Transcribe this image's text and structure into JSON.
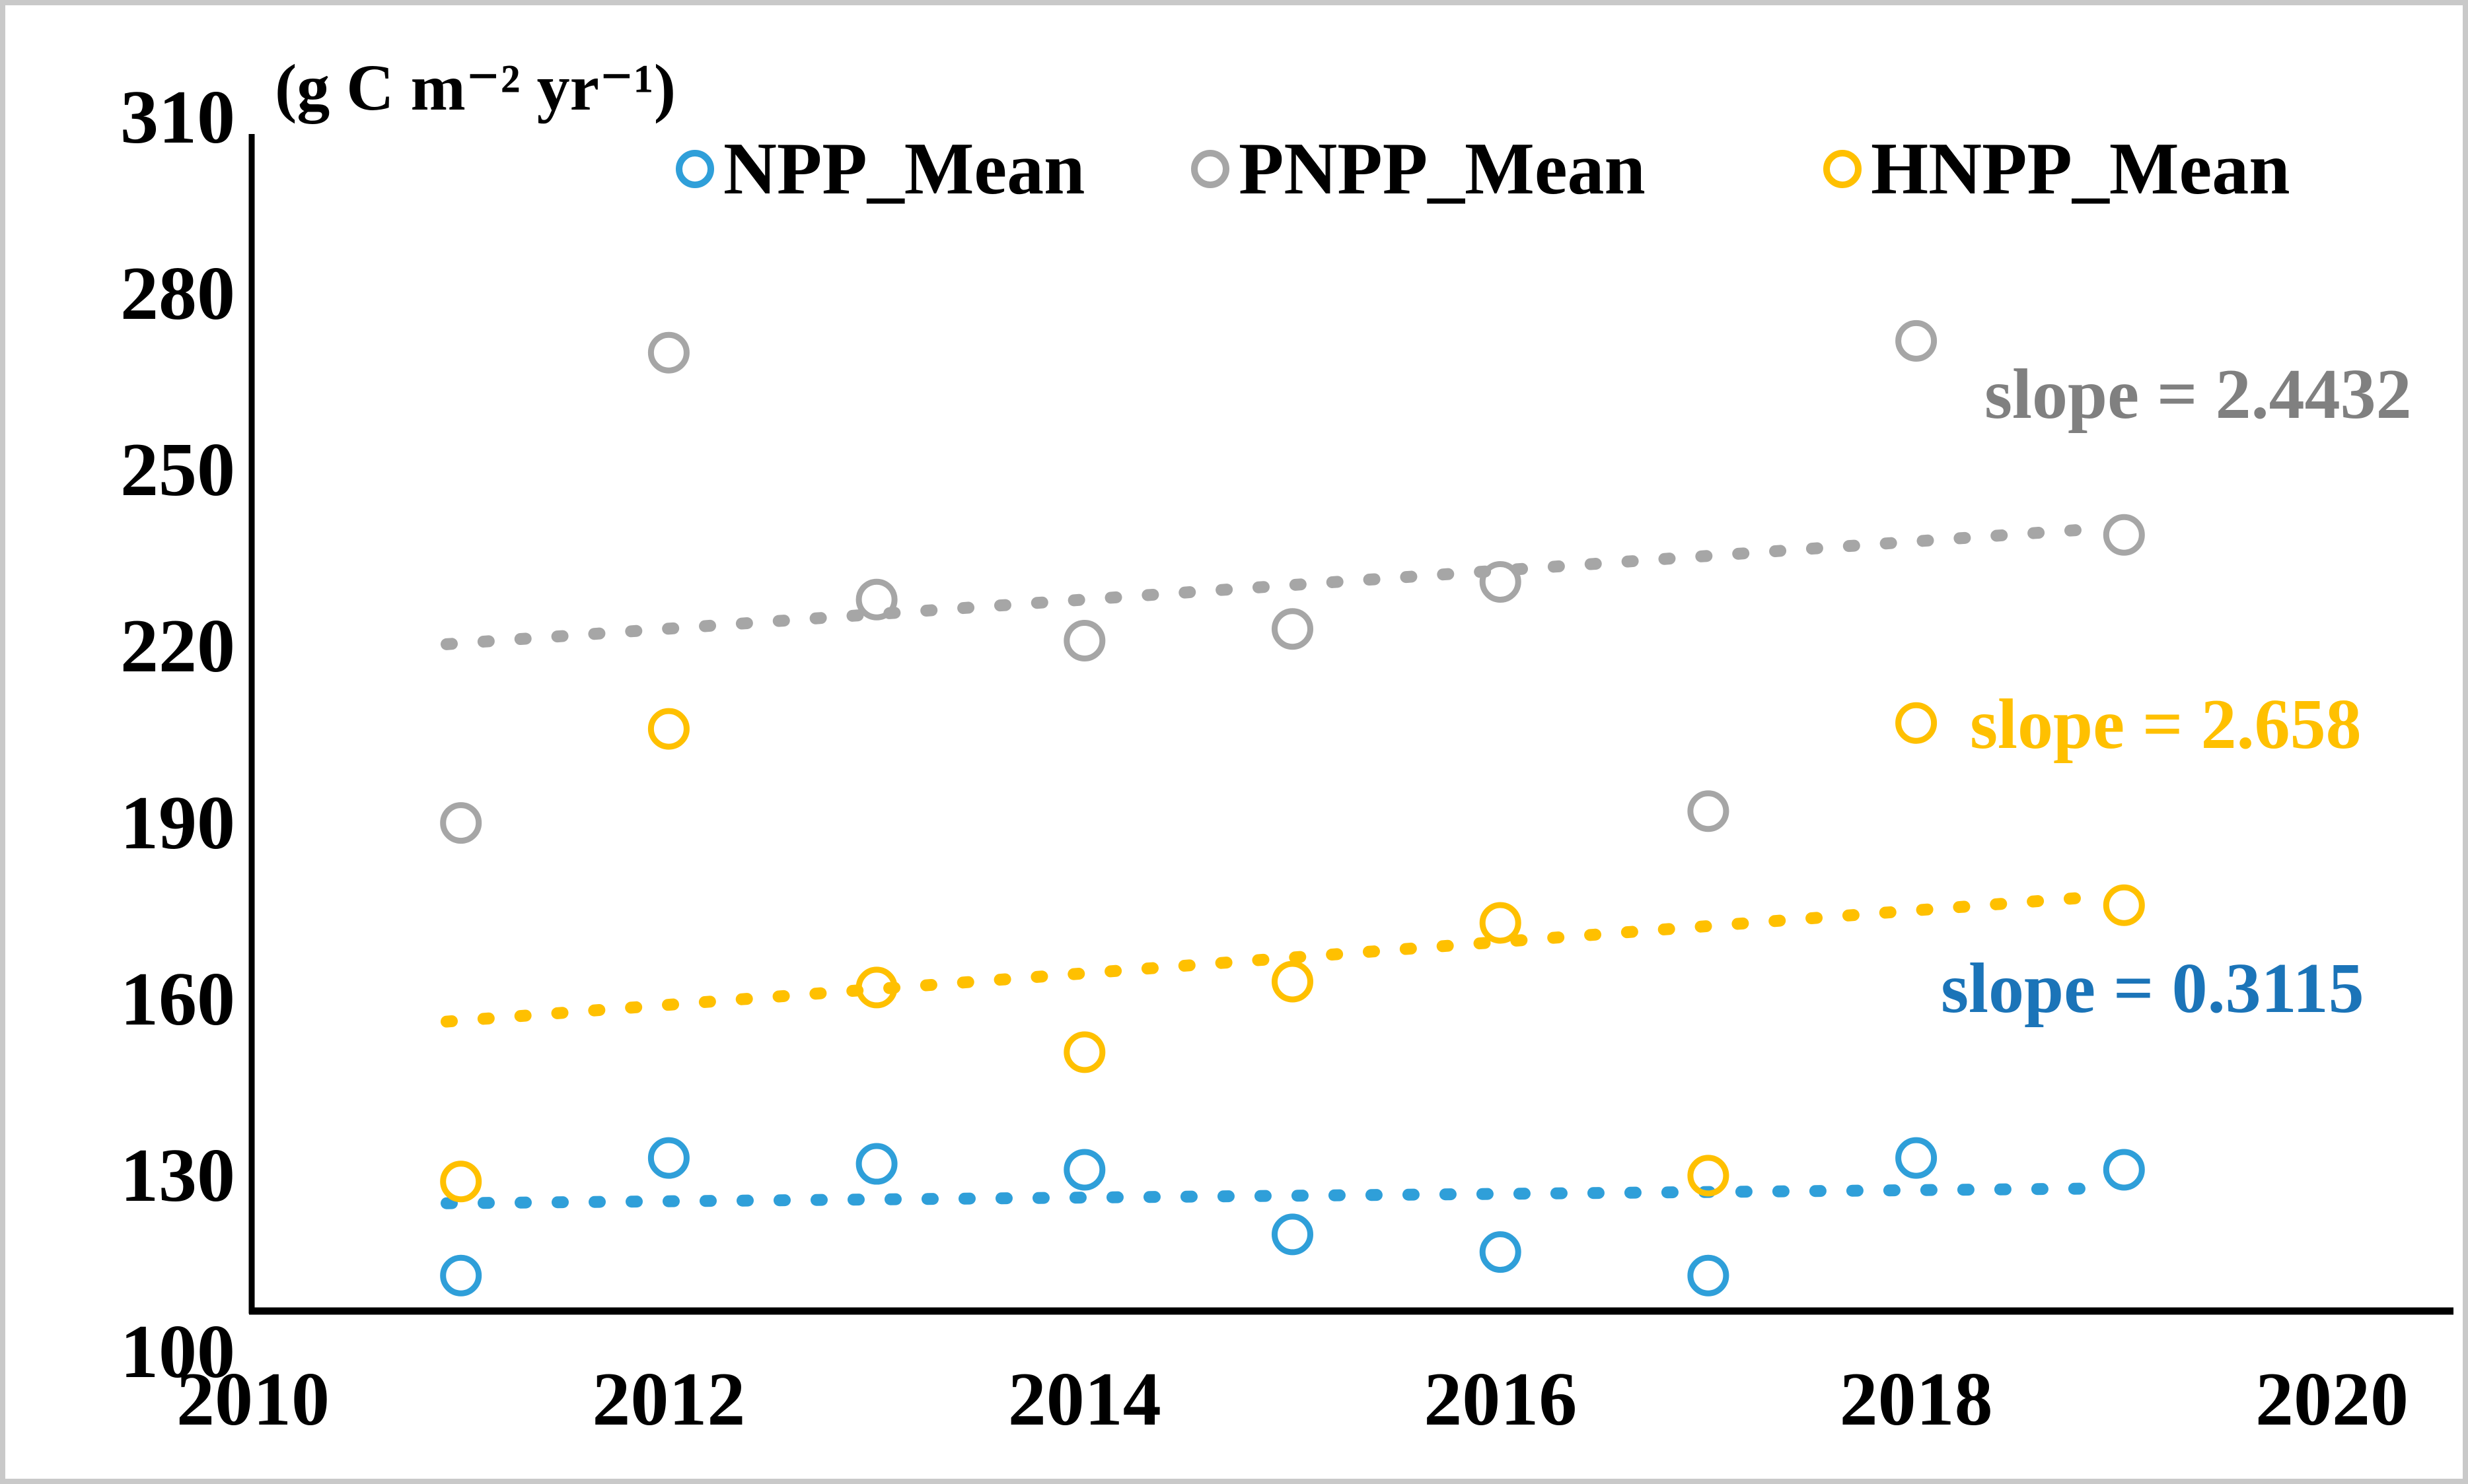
{
  "chart_data": {
    "type": "scatter",
    "title": "",
    "unit_label": "(g C m⁻² yr⁻¹)",
    "xlabel": "",
    "ylabel": "g C m-2 yr-1",
    "xlim": [
      2010,
      2020
    ],
    "ylim": [
      100,
      310
    ],
    "grid": false,
    "x_ticks": [
      "2010",
      "2012",
      "2014",
      "2016",
      "2018",
      "2020"
    ],
    "y_ticks": [
      "310",
      "280",
      "250",
      "220",
      "190",
      "160",
      "130",
      "100"
    ],
    "years": [
      2011,
      2012,
      2013,
      2014,
      2015,
      2016,
      2017,
      2018,
      2019
    ],
    "legend_position": "top",
    "series": [
      {
        "name": "NPP_Mean",
        "color": "#2f9fd9",
        "text_color": "#1b74b8",
        "values": [
          113,
          133,
          132,
          131,
          120,
          117,
          113,
          133,
          131
        ],
        "trend": {
          "slope": 0.3115,
          "start_2011": 125.3,
          "end_2019": 127.8
        },
        "slope_label": "slope = 0.3115"
      },
      {
        "name": "PNPP_Mean",
        "color": "#a6a6a6",
        "text_color": "#808080",
        "values": [
          190,
          270,
          228,
          221,
          223,
          231,
          192,
          272,
          239
        ],
        "trend": {
          "slope": 2.4432,
          "start_2011": 220.4,
          "end_2019": 240.0
        },
        "slope_label": "slope = 2.4432"
      },
      {
        "name": "HNPP_Mean",
        "color": "#ffc000",
        "text_color": "#ffc000",
        "values": [
          129,
          206,
          162,
          151,
          163,
          173,
          130,
          207,
          176
        ],
        "trend": {
          "slope": 2.658,
          "start_2011": 156.2,
          "end_2019": 177.4
        },
        "slope_label": "slope = 2.658"
      }
    ]
  }
}
